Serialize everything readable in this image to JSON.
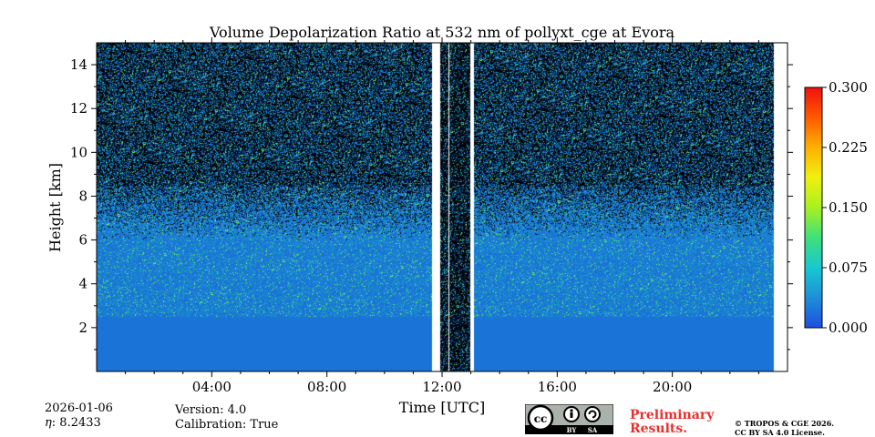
{
  "chart_data": {
    "type": "heatmap",
    "title": "Volume Depolarization Ratio at 532 nm of pollyxt_cge at Evora",
    "xlabel": "Time [UTC]",
    "ylabel": "Height [km]",
    "xlim_hours": [
      0,
      24
    ],
    "ylim_km": [
      0,
      15
    ],
    "x_ticks": [
      {
        "hour": 4,
        "label": "04:00"
      },
      {
        "hour": 8,
        "label": "08:00"
      },
      {
        "hour": 12,
        "label": "12:00"
      },
      {
        "hour": 16,
        "label": "16:00"
      },
      {
        "hour": 20,
        "label": "20:00"
      }
    ],
    "y_ticks": [
      {
        "km": 2,
        "label": "2"
      },
      {
        "km": 4,
        "label": "4"
      },
      {
        "km": 6,
        "label": "6"
      },
      {
        "km": 8,
        "label": "8"
      },
      {
        "km": 10,
        "label": "10"
      },
      {
        "km": 12,
        "label": "12"
      },
      {
        "km": 14,
        "label": "14"
      }
    ],
    "data_gaps_hours": [
      [
        11.65,
        11.92
      ],
      [
        12.2,
        12.25
      ],
      [
        12.98,
        13.1
      ]
    ],
    "data_end_hour": 23.5,
    "colorbar": {
      "min": 0.0,
      "max": 0.3,
      "ticks": [
        "0.000",
        "0.075",
        "0.150",
        "0.225",
        "0.300"
      ],
      "colors": [
        "#1f4fe0",
        "#1d8fd8",
        "#18c8d0",
        "#3fe07a",
        "#a8f020",
        "#f0f010",
        "#ffb000",
        "#ff5a00",
        "#ee1010"
      ]
    },
    "colors": {
      "low": "#1a74d8",
      "mid": "#1aa0c0",
      "noise_high": "#0a1a3a",
      "speck": "#7ef060",
      "background": "#000000"
    }
  },
  "meta": {
    "date": "2026-01-06",
    "eta_symbol": "η",
    "eta_value": ": 8.2433",
    "version": "Version: 4.0",
    "calibration": "Calibration: True"
  },
  "badge": {
    "cc": "cc",
    "by": "BY",
    "sa": "SA"
  },
  "footer": {
    "preliminary_line1": "Preliminary",
    "preliminary_line2": "Results.",
    "copyright_line1": "© TROPOS & CGE 2026.",
    "copyright_line2": "CC BY SA 4.0 License."
  }
}
